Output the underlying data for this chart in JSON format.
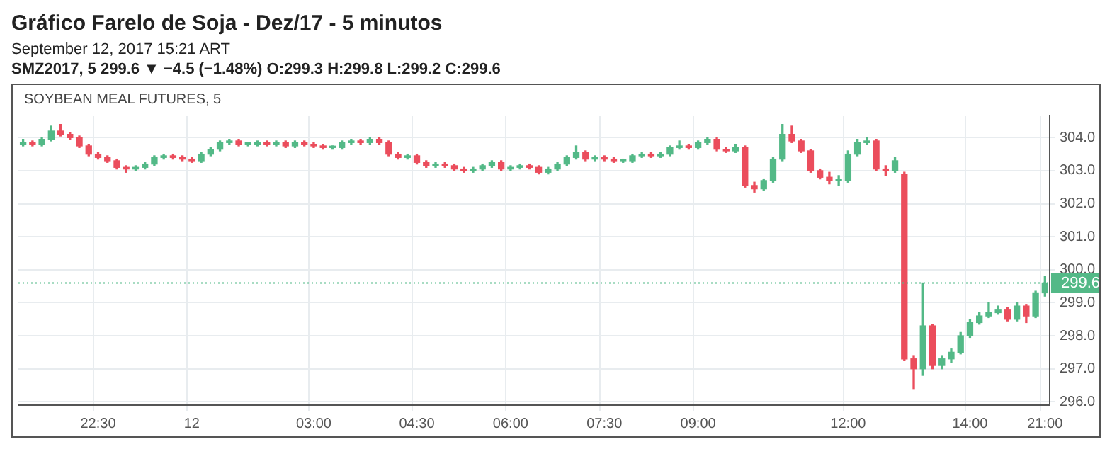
{
  "chart_data": {
    "type": "candlestick",
    "title": "Gráfico Farelo de Soja - Dez/17 - 5 minutos",
    "subtitle": "September 12, 2017 15:21 ART",
    "annotations": [
      "SMZ2017, 5 299.6 ▼ −4.5 (−1.48%) O:299.3 H:299.8 L:299.2 C:299.6",
      "SOYBEAN MEAL FUTURES, 5"
    ],
    "categories": [
      null,
      null,
      null,
      null,
      null,
      null,
      null,
      null,
      "22:30",
      null,
      null,
      null,
      null,
      null,
      null,
      null,
      null,
      null,
      "12",
      null,
      null,
      null,
      null,
      null,
      null,
      null,
      null,
      null,
      null,
      null,
      null,
      "03:00",
      null,
      null,
      null,
      null,
      null,
      null,
      null,
      null,
      null,
      null,
      "04:30",
      null,
      null,
      null,
      null,
      null,
      null,
      null,
      null,
      null,
      "06:00",
      null,
      null,
      null,
      null,
      null,
      null,
      null,
      null,
      null,
      "07:30",
      null,
      null,
      null,
      null,
      null,
      null,
      null,
      null,
      null,
      "09:00",
      null,
      null,
      null,
      null,
      null,
      null,
      null,
      null,
      null,
      null,
      null,
      null,
      null,
      null,
      null,
      "12:00",
      null,
      null,
      null,
      null,
      null,
      null,
      null,
      null,
      null,
      null,
      null,
      null,
      "14:00",
      null,
      null,
      null,
      null,
      null,
      null,
      null,
      "21:00"
    ],
    "ohlc": [
      [
        303.8,
        303.95,
        303.75,
        303.85
      ],
      [
        303.85,
        303.9,
        303.75,
        303.8
      ],
      [
        303.8,
        304.0,
        303.75,
        303.95
      ],
      [
        303.95,
        304.35,
        303.9,
        304.2
      ],
      [
        304.2,
        304.4,
        304.05,
        304.1
      ],
      [
        304.1,
        304.15,
        303.95,
        304.0
      ],
      [
        304.0,
        304.05,
        303.7,
        303.75
      ],
      [
        303.75,
        303.8,
        303.45,
        303.5
      ],
      [
        303.5,
        303.55,
        303.35,
        303.4
      ],
      [
        303.4,
        303.45,
        303.25,
        303.3
      ],
      [
        303.3,
        303.35,
        303.05,
        303.1
      ],
      [
        303.1,
        303.15,
        302.95,
        303.05
      ],
      [
        303.05,
        303.15,
        303.0,
        303.1
      ],
      [
        303.1,
        303.25,
        303.05,
        303.2
      ],
      [
        303.2,
        303.45,
        303.15,
        303.4
      ],
      [
        303.4,
        303.5,
        303.35,
        303.45
      ],
      [
        303.45,
        303.5,
        303.35,
        303.4
      ],
      [
        303.4,
        303.45,
        303.3,
        303.35
      ],
      [
        303.35,
        303.4,
        303.25,
        303.3
      ],
      [
        303.3,
        303.55,
        303.25,
        303.5
      ],
      [
        303.5,
        303.7,
        303.45,
        303.65
      ],
      [
        303.65,
        303.9,
        303.6,
        303.85
      ],
      [
        303.85,
        303.95,
        303.8,
        303.9
      ],
      [
        303.9,
        303.95,
        303.75,
        303.8
      ],
      [
        303.8,
        303.85,
        303.75,
        303.8
      ],
      [
        303.8,
        303.9,
        303.75,
        303.85
      ],
      [
        303.85,
        303.9,
        303.75,
        303.8
      ],
      [
        303.8,
        303.9,
        303.75,
        303.85
      ],
      [
        303.85,
        303.9,
        303.7,
        303.75
      ],
      [
        303.75,
        303.9,
        303.7,
        303.85
      ],
      [
        303.85,
        303.9,
        303.75,
        303.8
      ],
      [
        303.8,
        303.85,
        303.7,
        303.75
      ],
      [
        303.75,
        303.8,
        303.65,
        303.7
      ],
      [
        303.7,
        303.75,
        303.65,
        303.7
      ],
      [
        303.7,
        303.9,
        303.65,
        303.85
      ],
      [
        303.85,
        303.95,
        303.8,
        303.9
      ],
      [
        303.9,
        303.95,
        303.8,
        303.85
      ],
      [
        303.85,
        304.0,
        303.8,
        303.95
      ],
      [
        303.95,
        304.0,
        303.8,
        303.85
      ],
      [
        303.85,
        303.9,
        303.45,
        303.5
      ],
      [
        303.5,
        303.55,
        303.35,
        303.4
      ],
      [
        303.4,
        303.5,
        303.35,
        303.45
      ],
      [
        303.45,
        303.5,
        303.2,
        303.25
      ],
      [
        303.25,
        303.3,
        303.1,
        303.15
      ],
      [
        303.15,
        303.25,
        303.1,
        303.2
      ],
      [
        303.2,
        303.25,
        303.1,
        303.15
      ],
      [
        303.15,
        303.2,
        303.0,
        303.05
      ],
      [
        303.05,
        303.1,
        302.95,
        303.0
      ],
      [
        303.0,
        303.1,
        302.95,
        303.05
      ],
      [
        303.05,
        303.2,
        303.0,
        303.15
      ],
      [
        303.15,
        303.3,
        303.1,
        303.25
      ],
      [
        303.25,
        303.3,
        303.0,
        303.05
      ],
      [
        303.05,
        303.15,
        303.0,
        303.1
      ],
      [
        303.1,
        303.2,
        303.05,
        303.15
      ],
      [
        303.15,
        303.2,
        303.05,
        303.1
      ],
      [
        303.1,
        303.15,
        302.9,
        302.95
      ],
      [
        302.95,
        303.1,
        302.9,
        303.05
      ],
      [
        303.05,
        303.25,
        303.0,
        303.2
      ],
      [
        303.2,
        303.45,
        303.15,
        303.4
      ],
      [
        303.4,
        303.75,
        303.35,
        303.55
      ],
      [
        303.55,
        303.6,
        303.3,
        303.35
      ],
      [
        303.35,
        303.45,
        303.3,
        303.4
      ],
      [
        303.4,
        303.45,
        303.3,
        303.35
      ],
      [
        303.35,
        303.4,
        303.25,
        303.3
      ],
      [
        303.3,
        303.35,
        303.25,
        303.3
      ],
      [
        303.3,
        303.5,
        303.25,
        303.45
      ],
      [
        303.45,
        303.55,
        303.4,
        303.5
      ],
      [
        303.5,
        303.55,
        303.4,
        303.45
      ],
      [
        303.45,
        303.55,
        303.4,
        303.5
      ],
      [
        303.5,
        303.75,
        303.45,
        303.7
      ],
      [
        303.7,
        303.9,
        303.65,
        303.75
      ],
      [
        303.75,
        303.8,
        303.65,
        303.7
      ],
      [
        303.7,
        303.9,
        303.65,
        303.85
      ],
      [
        303.85,
        304.0,
        303.8,
        303.95
      ],
      [
        303.95,
        304.0,
        303.6,
        303.65
      ],
      [
        303.65,
        303.7,
        303.55,
        303.6
      ],
      [
        303.6,
        303.8,
        303.55,
        303.7
      ],
      [
        303.7,
        303.75,
        302.5,
        302.55
      ],
      [
        302.55,
        302.65,
        302.35,
        302.45
      ],
      [
        302.45,
        302.75,
        302.4,
        302.7
      ],
      [
        302.7,
        303.4,
        302.65,
        303.35
      ],
      [
        303.35,
        304.4,
        303.3,
        304.1
      ],
      [
        304.1,
        304.35,
        303.85,
        303.9
      ],
      [
        303.9,
        303.95,
        303.55,
        303.6
      ],
      [
        303.6,
        303.65,
        302.95,
        303.0
      ],
      [
        303.0,
        303.05,
        302.75,
        302.8
      ],
      [
        302.8,
        302.95,
        302.6,
        302.7
      ],
      [
        302.7,
        302.85,
        302.55,
        302.7
      ],
      [
        302.7,
        303.6,
        302.65,
        303.5
      ],
      [
        303.5,
        303.95,
        303.45,
        303.85
      ],
      [
        303.85,
        304.0,
        303.8,
        303.9
      ],
      [
        303.9,
        303.95,
        303.0,
        303.05
      ],
      [
        303.05,
        303.15,
        302.85,
        303.0
      ],
      [
        303.0,
        303.4,
        302.95,
        303.3
      ],
      [
        302.9,
        302.95,
        297.25,
        297.3
      ],
      [
        297.3,
        297.4,
        296.4,
        297.0
      ],
      [
        297.0,
        299.6,
        296.8,
        298.3
      ],
      [
        298.3,
        298.35,
        297.0,
        297.1
      ],
      [
        297.1,
        297.4,
        297.0,
        297.3
      ],
      [
        297.3,
        297.6,
        297.2,
        297.5
      ],
      [
        297.5,
        298.1,
        297.45,
        298.0
      ],
      [
        298.0,
        298.5,
        297.95,
        298.4
      ],
      [
        298.4,
        298.7,
        298.35,
        298.6
      ],
      [
        298.6,
        299.0,
        298.55,
        298.7
      ],
      [
        298.7,
        298.9,
        298.65,
        298.8
      ],
      [
        298.8,
        298.85,
        298.45,
        298.5
      ],
      [
        298.5,
        299.0,
        298.45,
        298.9
      ],
      [
        298.9,
        298.95,
        298.4,
        298.6
      ],
      [
        298.6,
        299.35,
        298.55,
        299.3
      ],
      [
        299.3,
        299.8,
        299.2,
        299.6
      ]
    ],
    "colors": [
      "#53b987",
      "#eb4d5c",
      "#53b987",
      "#53b987",
      "#eb4d5c",
      "#eb4d5c",
      "#eb4d5c",
      "#eb4d5c",
      "#eb4d5c",
      "#eb4d5c",
      "#eb4d5c",
      "#eb4d5c",
      "#53b987",
      "#53b987",
      "#53b987",
      "#53b987",
      "#eb4d5c",
      "#eb4d5c",
      "#eb4d5c",
      "#53b987",
      "#53b987",
      "#53b987",
      "#53b987",
      "#eb4d5c",
      "#53b987",
      "#53b987",
      "#eb4d5c",
      "#53b987",
      "#eb4d5c",
      "#53b987",
      "#eb4d5c",
      "#eb4d5c",
      "#eb4d5c",
      "#53b987",
      "#53b987",
      "#53b987",
      "#eb4d5c",
      "#53b987",
      "#eb4d5c",
      "#eb4d5c",
      "#eb4d5c",
      "#53b987",
      "#eb4d5c",
      "#eb4d5c",
      "#53b987",
      "#eb4d5c",
      "#eb4d5c",
      "#eb4d5c",
      "#53b987",
      "#53b987",
      "#53b987",
      "#eb4d5c",
      "#53b987",
      "#53b987",
      "#eb4d5c",
      "#eb4d5c",
      "#53b987",
      "#53b987",
      "#53b987",
      "#53b987",
      "#eb4d5c",
      "#53b987",
      "#eb4d5c",
      "#eb4d5c",
      "#53b987",
      "#53b987",
      "#53b987",
      "#eb4d5c",
      "#53b987",
      "#53b987",
      "#53b987",
      "#eb4d5c",
      "#53b987",
      "#53b987",
      "#eb4d5c",
      "#eb4d5c",
      "#53b987",
      "#eb4d5c",
      "#eb4d5c",
      "#53b987",
      "#53b987",
      "#53b987",
      "#eb4d5c",
      "#eb4d5c",
      "#eb4d5c",
      "#eb4d5c",
      "#eb4d5c",
      "#53b987",
      "#53b987",
      "#53b987",
      "#53b987",
      "#eb4d5c",
      "#eb4d5c",
      "#53b987",
      "#eb4d5c",
      "#eb4d5c",
      "#53b987",
      "#eb4d5c",
      "#53b987",
      "#53b987",
      "#53b987",
      "#53b987",
      "#53b987",
      "#53b987",
      "#53b987",
      "#eb4d5c",
      "#53b987",
      "#eb4d5c",
      "#53b987",
      "#53b987"
    ],
    "ylim": [
      295.9,
      304.65
    ],
    "yticks": [
      {
        "value": 296,
        "label": "296.0"
      },
      {
        "value": 297,
        "label": "297.0"
      },
      {
        "value": 298,
        "label": "298.0"
      },
      {
        "value": 299,
        "label": "299.0"
      },
      {
        "value": 300,
        "label": "300.0"
      },
      {
        "value": 301,
        "label": "301.0"
      },
      {
        "value": 302,
        "label": "302.0"
      },
      {
        "value": 303,
        "label": "303.0"
      },
      {
        "value": 304,
        "label": "304.0"
      }
    ],
    "ref_lines": [
      {
        "axis": "y",
        "value": 299.6,
        "label": "299.6",
        "color": "#53b987",
        "line_style": "dotted"
      }
    ],
    "grid": true
  }
}
